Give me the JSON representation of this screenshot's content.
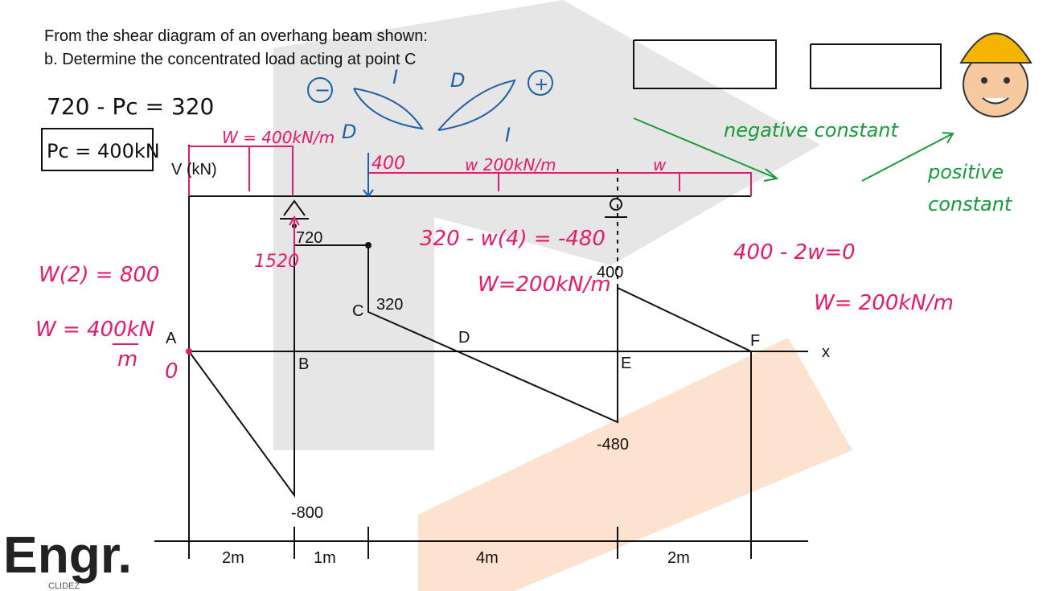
{
  "slide": {
    "title_lines": [
      "From the shear diagram of an overhang beam shown:",
      "b. Determine the concentrated load acting at point C"
    ]
  },
  "diagram": {
    "axis_label": "V (kN)",
    "x_label": "x",
    "points": [
      "A",
      "B",
      "C",
      "D",
      "E",
      "F"
    ],
    "value_labels": [
      "720",
      "320",
      "400",
      "-480",
      "-800"
    ],
    "spans": [
      "2m",
      "1m",
      "4m",
      "2m"
    ]
  },
  "notes": {
    "eq1": "720 - Pc = 320",
    "ans": "Pc = 400kN",
    "w2": "W(2) = 800",
    "w400": "W = 400kN",
    "w400_den": "m",
    "zero": "0",
    "load1": "W = 400kN/m",
    "load_d": "D",
    "load_400": "400",
    "load2": "w  200kN/m",
    "load3": "w",
    "r1520": "1520",
    "eq2": "320 - w(4) = -480",
    "eq2_res": "W=200kN/m",
    "eq3": "400 - 2w=0",
    "eq3_res": "W= 200kN/m",
    "neg": "negative constant",
    "pos1": "positive",
    "pos2": "constant",
    "minus": "−",
    "plus": "+",
    "i1": "I",
    "d1": "D",
    "i2": "I"
  },
  "logo": {
    "brand": "Engr.",
    "sub": "CLIDEZ"
  }
}
